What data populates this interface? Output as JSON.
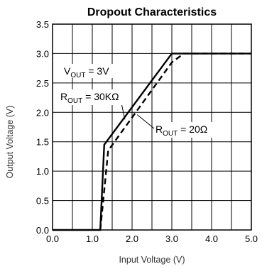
{
  "chart_data": {
    "type": "line",
    "title": "Dropout Characteristics",
    "xlabel": "Input Voltage (V)",
    "ylabel": "Output Voltage (V)",
    "xlim": [
      0,
      5
    ],
    "ylim": [
      0,
      3.5
    ],
    "x_ticks": [
      "0.0",
      "1.0",
      "2.0",
      "3.0",
      "4.0",
      "5.0"
    ],
    "y_ticks": [
      "0.0",
      "0.5",
      "1.0",
      "1.5",
      "2.0",
      "2.5",
      "3.0",
      "3.5"
    ],
    "grid": true,
    "series": [
      {
        "name": "R_OUT = 30KΩ",
        "style": "solid",
        "color": "#000000",
        "x": [
          0.0,
          1.2,
          1.3,
          3.0,
          5.0
        ],
        "y": [
          0.0,
          0.0,
          1.45,
          3.0,
          3.0
        ]
      },
      {
        "name": "R_OUT = 20Ω",
        "style": "dashed",
        "color": "#000000",
        "x": [
          1.2,
          1.4,
          3.0,
          3.3,
          5.0
        ],
        "y": [
          0.0,
          1.35,
          2.85,
          3.0,
          3.0
        ]
      }
    ],
    "annotations": {
      "vout": {
        "main": "V",
        "sub": "OUT",
        "rest": " = 3V"
      },
      "rout_solid": {
        "main": "R",
        "sub": "OUT",
        "rest": " = 30KΩ"
      },
      "rout_dashed": {
        "main": "R",
        "sub": "OUT",
        "rest": " = 20Ω"
      }
    }
  }
}
